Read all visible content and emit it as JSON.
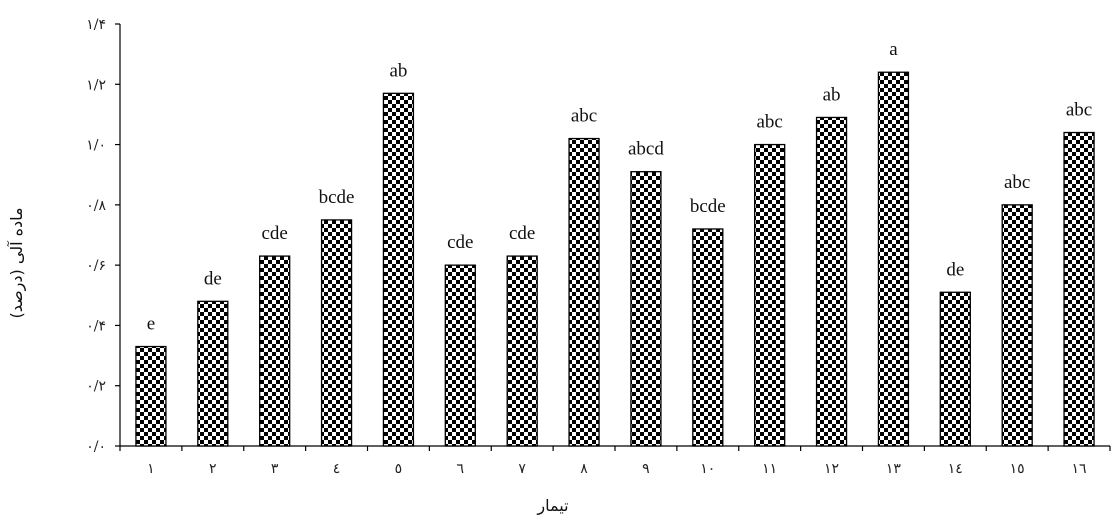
{
  "chart_data": {
    "type": "bar",
    "categories": [
      "١",
      "٢",
      "٣",
      "٤",
      "٥",
      "٦",
      "٧",
      "٨",
      "٩",
      "١٠",
      "١١",
      "١٢",
      "١٣",
      "١٤",
      "١٥",
      "١٦"
    ],
    "values": [
      0.33,
      0.48,
      0.63,
      0.75,
      1.17,
      0.6,
      0.63,
      1.02,
      0.91,
      0.72,
      1.0,
      1.09,
      1.24,
      0.51,
      0.8,
      1.04
    ],
    "significance_letters": [
      "e",
      "de",
      "cde",
      "bcde",
      "ab",
      "cde",
      "cde",
      "abc",
      "abcd",
      "bcde",
      "abc",
      "ab",
      "a",
      "de",
      "abc",
      "abc"
    ],
    "xlabel": "تیمار",
    "ylabel": "ماده آلی (درصد)",
    "ylim": [
      0,
      1.4
    ],
    "yticks": [
      0,
      0.2,
      0.4,
      0.6,
      0.8,
      1.0,
      1.2,
      1.4
    ],
    "ytick_labels": [
      "٠/٠",
      "٠/٢",
      "٠/۴",
      "٠/۶",
      "٠/٨",
      "١/٠",
      "١/٢",
      "١/۴"
    ],
    "grid": false,
    "bar_fill": "checkerboard",
    "bar_colors": [
      "#000000",
      "#ffffff"
    ]
  }
}
